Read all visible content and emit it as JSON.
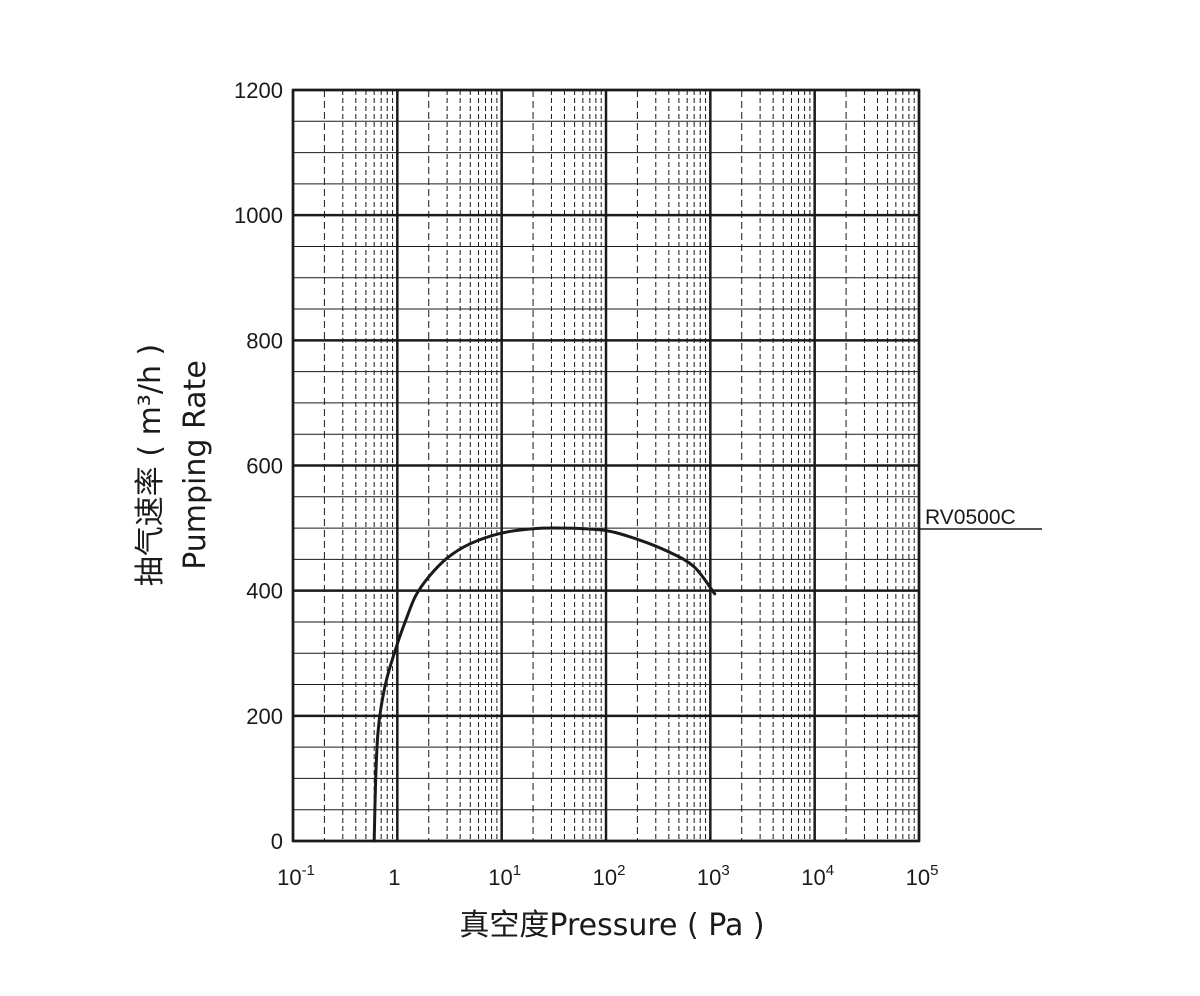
{
  "chart_data": {
    "type": "line",
    "x_scale": "log",
    "xlabel": "真空度Pressure ( Pa )",
    "ylabel_line1": "抽气速率 ( m³/h )",
    "ylabel_line2": "Pumping Rate",
    "xlim": [
      0.1,
      100000
    ],
    "ylim": [
      0,
      1200
    ],
    "x_ticks": [
      {
        "value": 0.1,
        "base": "10",
        "exp": "-1"
      },
      {
        "value": 1,
        "base": "1",
        "exp": ""
      },
      {
        "value": 10,
        "base": "10",
        "exp": "1"
      },
      {
        "value": 100,
        "base": "10",
        "exp": "2"
      },
      {
        "value": 1000,
        "base": "10",
        "exp": "3"
      },
      {
        "value": 10000,
        "base": "10",
        "exp": "4"
      },
      {
        "value": 100000,
        "base": "10",
        "exp": "5"
      }
    ],
    "y_ticks": [
      {
        "value": 0,
        "label": "0"
      },
      {
        "value": 200,
        "label": "200"
      },
      {
        "value": 400,
        "label": "400"
      },
      {
        "value": 600,
        "label": "600"
      },
      {
        "value": 800,
        "label": "800"
      },
      {
        "value": 1000,
        "label": "1000"
      },
      {
        "value": 1200,
        "label": "1200"
      }
    ],
    "y_minor_step": 50,
    "grid": true,
    "series": [
      {
        "name": "RV0500C",
        "x": [
          0.6,
          0.62,
          0.65,
          0.7,
          0.8,
          1.0,
          1.2,
          1.5,
          2,
          3,
          5,
          10,
          20,
          40,
          100,
          200,
          400,
          700,
          1100
        ],
        "y": [
          0,
          100,
          170,
          215,
          262,
          315,
          352,
          392,
          422,
          452,
          475,
          492,
          499,
          500,
          496,
          482,
          462,
          438,
          395
        ]
      }
    ],
    "colors": {
      "grid": "#1a1a1a",
      "line": "#1a1a1a",
      "background": "#ffffff"
    }
  }
}
